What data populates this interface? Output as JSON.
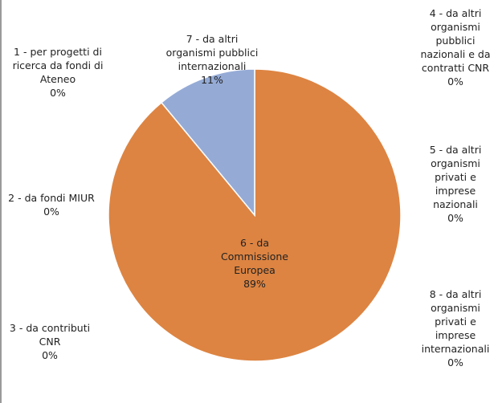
{
  "chart_data": {
    "type": "pie",
    "categories": [
      "1 - per progetti di ricerca da fondi di Ateneo",
      "2 - da fondi MIUR",
      "3 - da contributi CNR",
      "4 - da altri organismi pubblici nazionali e da contratti CNR",
      "5 - da altri organismi privati e imprese nazionali",
      "6 - da Commissione Europea",
      "7 - da altri organismi pubblici internazionali",
      "8 - da altri organismi privati e imprese internazionali"
    ],
    "values": [
      0,
      0,
      0,
      0,
      0,
      89,
      11,
      0
    ],
    "value_labels": [
      "0%",
      "0%",
      "0%",
      "0%",
      "0%",
      "89%",
      "11%",
      "0%"
    ],
    "colors": [
      "#4f81bd",
      "#c0504d",
      "#9bbb59",
      "#8064a2",
      "#4bacc6",
      "#dd8442",
      "#95abd6",
      "#f79646"
    ]
  }
}
